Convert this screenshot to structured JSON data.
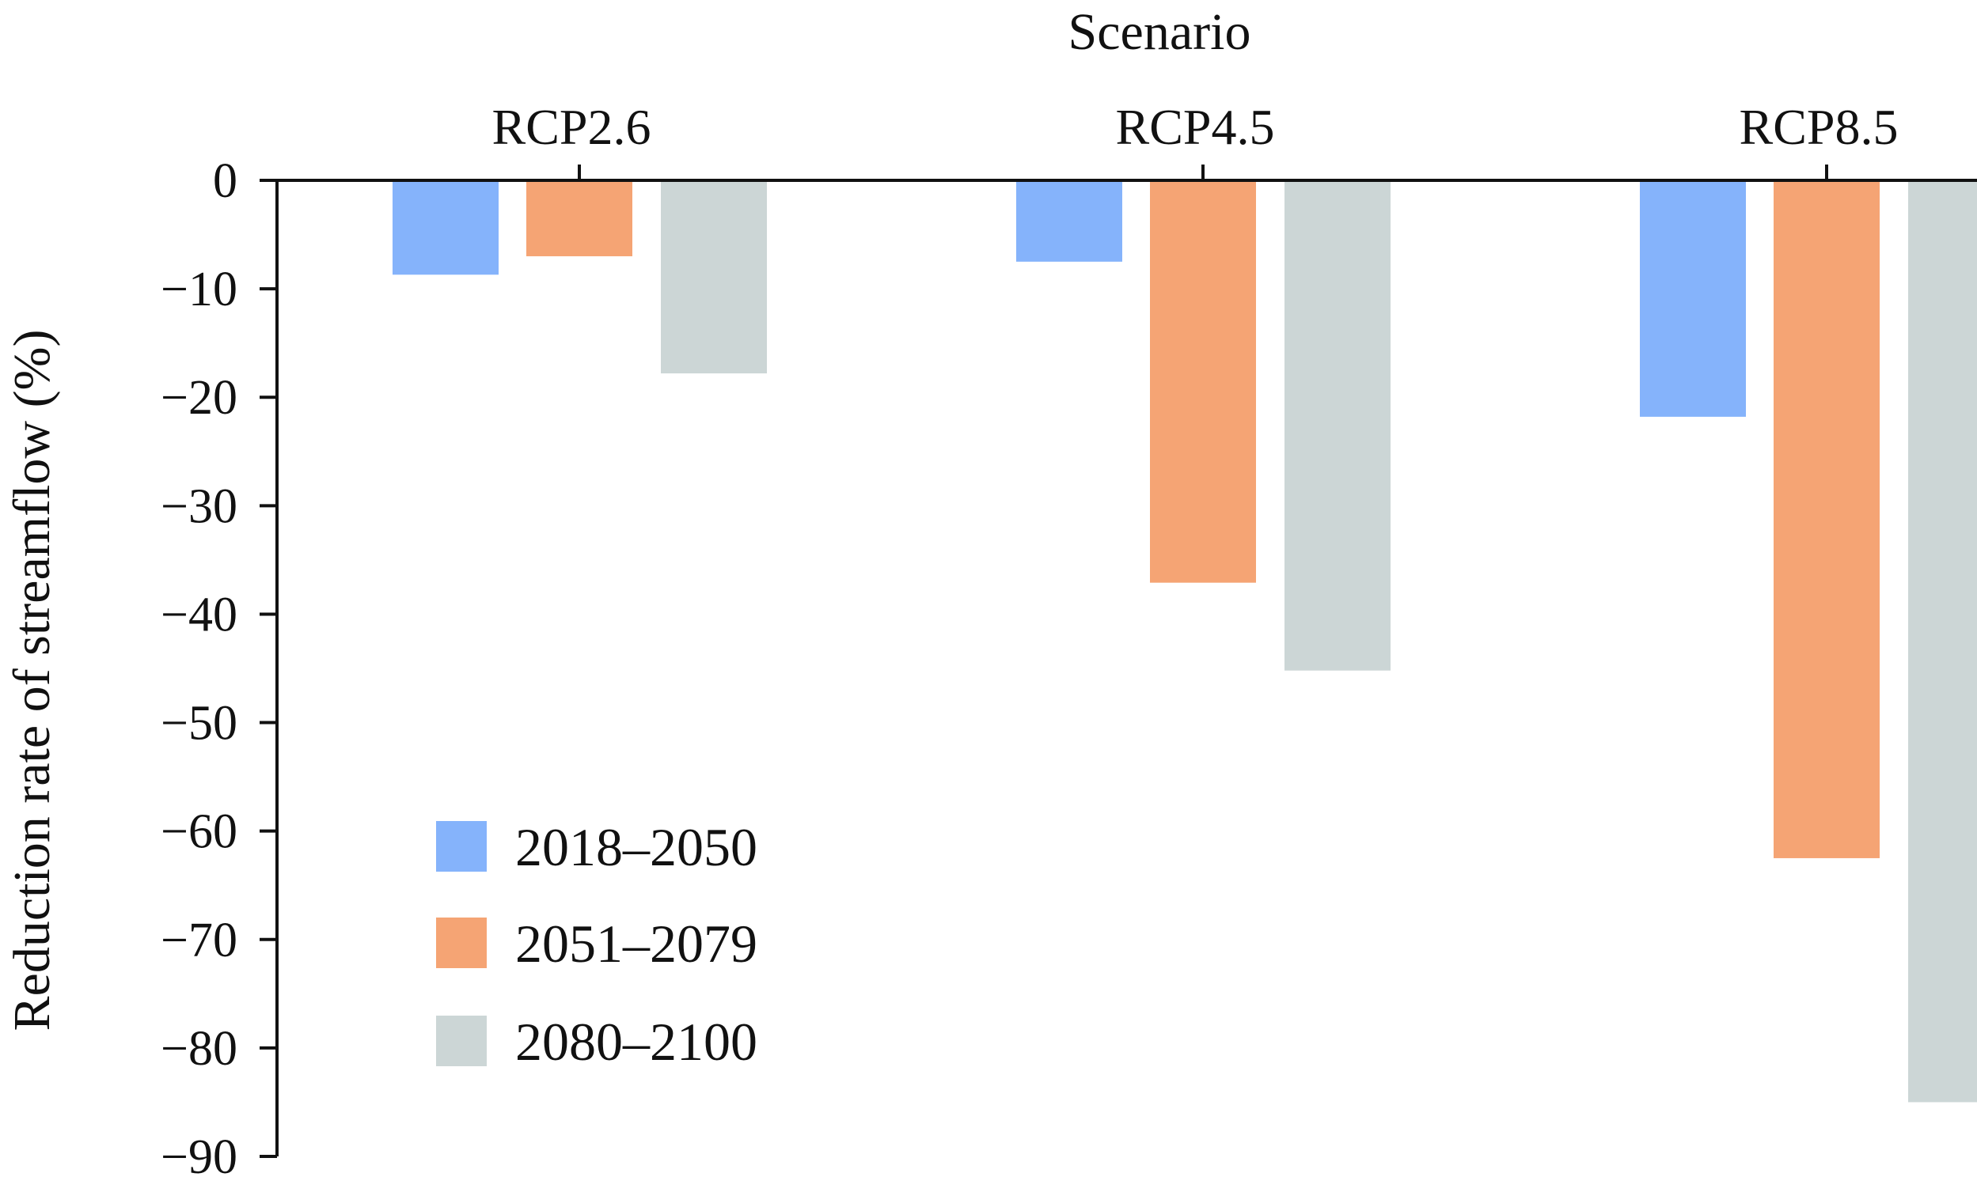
{
  "chart_data": {
    "type": "bar",
    "title": "",
    "xlabel": "Scenario",
    "ylabel": "Reduction rate of streamflow (%)",
    "categories": [
      "RCP2.6",
      "RCP4.5",
      "RCP8.5"
    ],
    "series": [
      {
        "name": "2018–2050",
        "color": "#85b3fb",
        "values": [
          -8.7,
          -7.5,
          -21.8
        ]
      },
      {
        "name": "2051–2079",
        "color": "#f5a474",
        "values": [
          -7.0,
          -37.1,
          -62.5
        ]
      },
      {
        "name": "2080–2100",
        "color": "#ccd6d6",
        "values": [
          -17.8,
          -45.2,
          -85.0
        ]
      }
    ],
    "ylim": [
      -90,
      0
    ],
    "yticks": [
      0,
      -10,
      -20,
      -30,
      -40,
      -50,
      -60,
      -70,
      -80,
      -90
    ],
    "ytick_labels": [
      "0",
      "−10",
      "−20",
      "−30",
      "−40",
      "−50",
      "−60",
      "−70",
      "−80",
      "−90"
    ],
    "x_axis_position": "top",
    "grid": false,
    "legend_position": "bottom-left"
  }
}
